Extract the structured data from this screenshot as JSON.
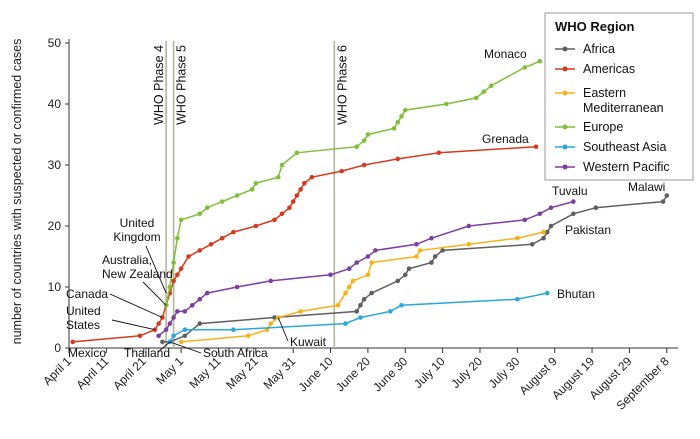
{
  "chart_data": {
    "type": "line",
    "title": "",
    "xlabel": "",
    "ylabel": "number of countries with suspected or confirmed cases",
    "ylim": [
      0,
      50
    ],
    "yticks": [
      "0",
      "10",
      "20",
      "30",
      "40",
      "50"
    ],
    "xlim": [
      "2009-04-01",
      "2009-09-11"
    ],
    "xticks": [
      {
        "label": "April 1",
        "date": "2009-04-01"
      },
      {
        "label": "April 11",
        "date": "2009-04-11"
      },
      {
        "label": "April 21",
        "date": "2009-04-21"
      },
      {
        "label": "May 1",
        "date": "2009-05-01"
      },
      {
        "label": "May 11",
        "date": "2009-05-11"
      },
      {
        "label": "May 21",
        "date": "2009-05-21"
      },
      {
        "label": "May 31",
        "date": "2009-05-31"
      },
      {
        "label": "June 10",
        "date": "2009-06-10"
      },
      {
        "label": "June 20",
        "date": "2009-06-20"
      },
      {
        "label": "June 30",
        "date": "2009-06-30"
      },
      {
        "label": "July 10",
        "date": "2009-07-10"
      },
      {
        "label": "July 20",
        "date": "2009-07-20"
      },
      {
        "label": "July 30",
        "date": "2009-07-30"
      },
      {
        "label": "August 9",
        "date": "2009-08-09"
      },
      {
        "label": "August 19",
        "date": "2009-08-19"
      },
      {
        "label": "August 29",
        "date": "2009-08-29"
      },
      {
        "label": "September 8",
        "date": "2009-09-08"
      }
    ],
    "grid": false,
    "legend": {
      "title": "WHO Region",
      "position": "top-right"
    },
    "phases": [
      {
        "label": "WHO Phase 4",
        "date": "2009-04-27"
      },
      {
        "label": "WHO Phase 5",
        "date": "2009-04-29"
      },
      {
        "label": "WHO Phase 6",
        "date": "2009-06-11"
      }
    ],
    "series": [
      {
        "name": "Africa",
        "color": "#5f5f5f",
        "points": [
          [
            "2009-04-26",
            1
          ],
          [
            "2009-04-28",
            1
          ],
          [
            "2009-05-02",
            2
          ],
          [
            "2009-05-06",
            4
          ],
          [
            "2009-05-26",
            5
          ],
          [
            "2009-06-17",
            6
          ],
          [
            "2009-06-18",
            7
          ],
          [
            "2009-06-19",
            8
          ],
          [
            "2009-06-21",
            9
          ],
          [
            "2009-06-28",
            11
          ],
          [
            "2009-06-30",
            12
          ],
          [
            "2009-07-01",
            13
          ],
          [
            "2009-07-07",
            14
          ],
          [
            "2009-07-08",
            15
          ],
          [
            "2009-07-10",
            16
          ],
          [
            "2009-08-03",
            17
          ],
          [
            "2009-08-06",
            18
          ],
          [
            "2009-08-07",
            19
          ],
          [
            "2009-08-08",
            20
          ],
          [
            "2009-08-14",
            22
          ],
          [
            "2009-08-20",
            23
          ],
          [
            "2009-09-07",
            24
          ],
          [
            "2009-09-08",
            25
          ]
        ]
      },
      {
        "name": "Americas",
        "color": "#d63a1e",
        "points": [
          [
            "2009-04-02",
            1
          ],
          [
            "2009-04-20",
            2
          ],
          [
            "2009-04-24",
            3
          ],
          [
            "2009-04-25",
            4
          ],
          [
            "2009-04-26",
            5
          ],
          [
            "2009-04-27",
            7
          ],
          [
            "2009-04-28",
            9
          ],
          [
            "2009-04-29",
            11
          ],
          [
            "2009-04-30",
            12
          ],
          [
            "2009-05-01",
            13
          ],
          [
            "2009-05-03",
            15
          ],
          [
            "2009-05-06",
            16
          ],
          [
            "2009-05-09",
            17
          ],
          [
            "2009-05-12",
            18
          ],
          [
            "2009-05-15",
            19
          ],
          [
            "2009-05-21",
            20
          ],
          [
            "2009-05-26",
            21
          ],
          [
            "2009-05-28",
            22
          ],
          [
            "2009-05-30",
            23
          ],
          [
            "2009-05-31",
            24
          ],
          [
            "2009-06-01",
            25
          ],
          [
            "2009-06-02",
            26
          ],
          [
            "2009-06-03",
            27
          ],
          [
            "2009-06-05",
            28
          ],
          [
            "2009-06-13",
            29
          ],
          [
            "2009-06-19",
            30
          ],
          [
            "2009-06-28",
            31
          ],
          [
            "2009-07-09",
            32
          ],
          [
            "2009-08-04",
            33
          ]
        ]
      },
      {
        "name": "Eastern Mediterranean",
        "color": "#f5b31b",
        "points": [
          [
            "2009-05-01",
            1
          ],
          [
            "2009-05-19",
            2
          ],
          [
            "2009-05-24",
            3
          ],
          [
            "2009-05-25",
            4
          ],
          [
            "2009-05-27",
            5
          ],
          [
            "2009-06-02",
            6
          ],
          [
            "2009-06-12",
            7
          ],
          [
            "2009-06-14",
            9
          ],
          [
            "2009-06-15",
            10
          ],
          [
            "2009-06-16",
            11
          ],
          [
            "2009-06-20",
            12
          ],
          [
            "2009-06-21",
            14
          ],
          [
            "2009-07-03",
            15
          ],
          [
            "2009-07-04",
            16
          ],
          [
            "2009-07-17",
            17
          ],
          [
            "2009-07-30",
            18
          ],
          [
            "2009-08-06",
            19
          ]
        ]
      },
      {
        "name": "Europe",
        "color": "#7fbf3a",
        "points": [
          [
            "2009-04-27",
            7
          ],
          [
            "2009-04-28",
            10
          ],
          [
            "2009-04-29",
            14
          ],
          [
            "2009-04-30",
            18
          ],
          [
            "2009-05-01",
            21
          ],
          [
            "2009-05-06",
            22
          ],
          [
            "2009-05-08",
            23
          ],
          [
            "2009-05-12",
            24
          ],
          [
            "2009-05-16",
            25
          ],
          [
            "2009-05-20",
            26
          ],
          [
            "2009-05-21",
            27
          ],
          [
            "2009-05-27",
            28
          ],
          [
            "2009-05-28",
            30
          ],
          [
            "2009-06-01",
            32
          ],
          [
            "2009-06-17",
            33
          ],
          [
            "2009-06-19",
            34
          ],
          [
            "2009-06-20",
            35
          ],
          [
            "2009-06-27",
            36
          ],
          [
            "2009-06-28",
            37
          ],
          [
            "2009-06-29",
            38
          ],
          [
            "2009-06-30",
            39
          ],
          [
            "2009-07-11",
            40
          ],
          [
            "2009-07-19",
            41
          ],
          [
            "2009-07-21",
            42
          ],
          [
            "2009-07-23",
            43
          ],
          [
            "2009-08-01",
            46
          ],
          [
            "2009-08-05",
            47
          ]
        ]
      },
      {
        "name": "Southeast Asia",
        "color": "#2aa8dc",
        "points": [
          [
            "2009-04-28",
            1
          ],
          [
            "2009-04-29",
            2
          ],
          [
            "2009-05-02",
            3
          ],
          [
            "2009-05-15",
            3
          ],
          [
            "2009-06-14",
            4
          ],
          [
            "2009-06-18",
            5
          ],
          [
            "2009-06-26",
            6
          ],
          [
            "2009-06-29",
            7
          ],
          [
            "2009-07-30",
            8
          ],
          [
            "2009-08-07",
            9
          ]
        ]
      },
      {
        "name": "Western Pacific",
        "color": "#7b3fa0",
        "points": [
          [
            "2009-04-25",
            2
          ],
          [
            "2009-04-27",
            3
          ],
          [
            "2009-04-28",
            4
          ],
          [
            "2009-04-29",
            5
          ],
          [
            "2009-04-30",
            6
          ],
          [
            "2009-05-02",
            6
          ],
          [
            "2009-05-04",
            7
          ],
          [
            "2009-05-06",
            8
          ],
          [
            "2009-05-08",
            9
          ],
          [
            "2009-05-16",
            10
          ],
          [
            "2009-05-25",
            11
          ],
          [
            "2009-06-10",
            12
          ],
          [
            "2009-06-15",
            13
          ],
          [
            "2009-06-17",
            14
          ],
          [
            "2009-06-20",
            15
          ],
          [
            "2009-06-22",
            16
          ],
          [
            "2009-07-03",
            17
          ],
          [
            "2009-07-07",
            18
          ],
          [
            "2009-07-17",
            20
          ],
          [
            "2009-08-01",
            21
          ],
          [
            "2009-08-05",
            22
          ],
          [
            "2009-08-08",
            23
          ],
          [
            "2009-08-14",
            24
          ]
        ]
      }
    ],
    "annotations": [
      {
        "text": "Mexico",
        "date": "2009-04-02",
        "value": 1
      },
      {
        "text": "United States",
        "date": "2009-04-24",
        "value": 3
      },
      {
        "text": "Canada",
        "date": "2009-04-26",
        "value": 5
      },
      {
        "text": "Australia, New Zealand",
        "date": "2009-04-27",
        "value": 7
      },
      {
        "text": "United Kingdom",
        "date": "2009-04-27",
        "value": 9
      },
      {
        "text": "Thailand",
        "date": "2009-04-28",
        "value": 1
      },
      {
        "text": "South Africa",
        "date": "2009-04-28",
        "value": 1
      },
      {
        "text": "Kuwait",
        "date": "2009-05-27",
        "value": 5
      },
      {
        "text": "Monaco",
        "date": "2009-08-05",
        "value": 47
      },
      {
        "text": "Grenada",
        "date": "2009-08-04",
        "value": 33
      },
      {
        "text": "Tuvalu",
        "date": "2009-08-14",
        "value": 24
      },
      {
        "text": "Malawi",
        "date": "2009-09-08",
        "value": 25
      },
      {
        "text": "Pakistan",
        "date": "2009-08-06",
        "value": 19
      },
      {
        "text": "Bhutan",
        "date": "2009-08-07",
        "value": 9
      }
    ]
  }
}
